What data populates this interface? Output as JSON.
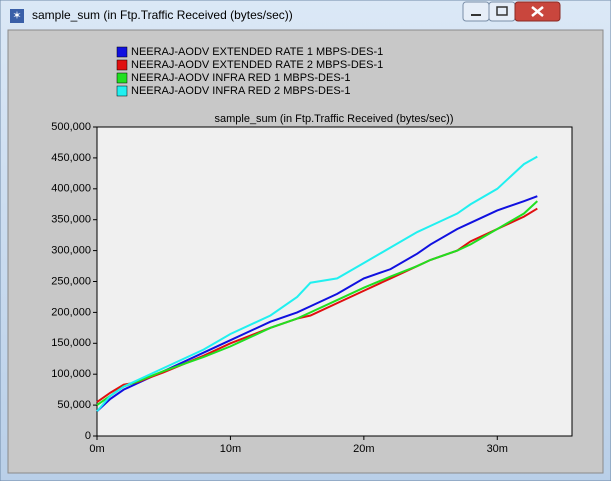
{
  "window": {
    "title": "sample_sum (in Ftp.Traffic Received (bytes/sec))"
  },
  "chart_data": {
    "type": "line",
    "title": "sample_sum (in Ftp.Traffic Received (bytes/sec))",
    "x": [
      0,
      1,
      2,
      3,
      5,
      8,
      10,
      13,
      15,
      16,
      18,
      20,
      22,
      24,
      25,
      27,
      28,
      30,
      32,
      33
    ],
    "series": [
      {
        "name": "NEERAJ-AODV EXTENDED RATE  1 MBPS-DES-1",
        "color": "#1010e0",
        "values": [
          40000,
          60000,
          75000,
          85000,
          105000,
          135000,
          155000,
          185000,
          200000,
          210000,
          230000,
          255000,
          270000,
          295000,
          310000,
          335000,
          345000,
          365000,
          380000,
          388000
        ]
      },
      {
        "name": "NEERAJ-AODV EXTENDED RATE  2 MBPS-DES-1",
        "color": "#e01010",
        "values": [
          55000,
          70000,
          83000,
          87000,
          103000,
          130000,
          150000,
          175000,
          190000,
          195000,
          215000,
          235000,
          255000,
          275000,
          285000,
          300000,
          315000,
          335000,
          355000,
          368000
        ]
      },
      {
        "name": "NEERAJ-AODV INFRA RED 1 MBPS-DES-1",
        "color": "#20e020",
        "values": [
          50000,
          65000,
          80000,
          88000,
          105000,
          128000,
          145000,
          175000,
          190000,
          200000,
          220000,
          240000,
          258000,
          275000,
          285000,
          300000,
          310000,
          335000,
          360000,
          380000
        ]
      },
      {
        "name": "NEERAJ-AODV INFRA RED 2 MBPS-DES-1",
        "color": "#20f0f0",
        "values": [
          40000,
          65000,
          80000,
          90000,
          110000,
          140000,
          165000,
          195000,
          225000,
          248000,
          255000,
          280000,
          305000,
          330000,
          340000,
          360000,
          375000,
          400000,
          440000,
          452000
        ]
      }
    ],
    "xlim": [
      0,
      35.6
    ],
    "xticks": [
      {
        "value": 0,
        "label": "0m"
      },
      {
        "value": 10,
        "label": "10m"
      },
      {
        "value": 20,
        "label": "20m"
      },
      {
        "value": 30,
        "label": "30m"
      }
    ],
    "ylim": [
      0,
      500000
    ],
    "yticks": [
      0,
      {
        "value": 50000,
        "label": "50,000"
      },
      {
        "value": 100000,
        "label": "100,000"
      },
      {
        "value": 150000,
        "label": "150,000"
      },
      {
        "value": 200000,
        "label": "200,000"
      },
      {
        "value": 250000,
        "label": "250,000"
      },
      {
        "value": 300000,
        "label": "300,000"
      },
      {
        "value": 350000,
        "label": "350,000"
      },
      {
        "value": 400000,
        "label": "400,000"
      },
      {
        "value": 450000,
        "label": "450,000"
      },
      {
        "value": 500000,
        "label": "500,000"
      }
    ],
    "grid": false
  }
}
